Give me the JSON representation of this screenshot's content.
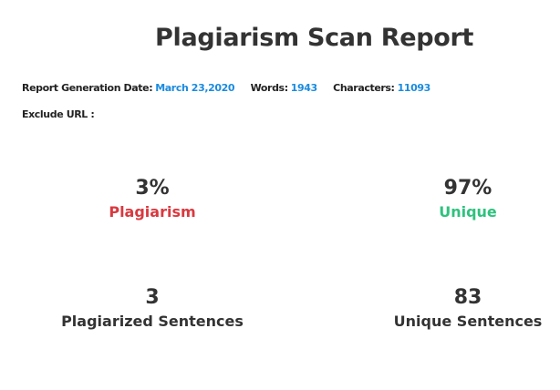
{
  "report": {
    "title": "Plagiarism Scan Report",
    "date_label": "Report Generation Date:",
    "date_value": "March 23,2020",
    "words_label": "Words:",
    "words_value": "1943",
    "characters_label": "Characters:",
    "characters_value": "11093",
    "exclude_url_label": "Exclude URL :"
  },
  "stats": {
    "plagiarism_percent": "3%",
    "plagiarism_label": "Plagiarism",
    "unique_percent": "97%",
    "unique_label": "Unique",
    "plagiarized_sentences_count": "3",
    "plagiarized_sentences_label": "Plagiarized Sentences",
    "unique_sentences_count": "83",
    "unique_sentences_label": "Unique Sentences"
  },
  "colors": {
    "plagiarism": "#d9393f",
    "unique": "#2ec27e",
    "value_blue": "#1a8be0",
    "text_dark": "#333333"
  }
}
